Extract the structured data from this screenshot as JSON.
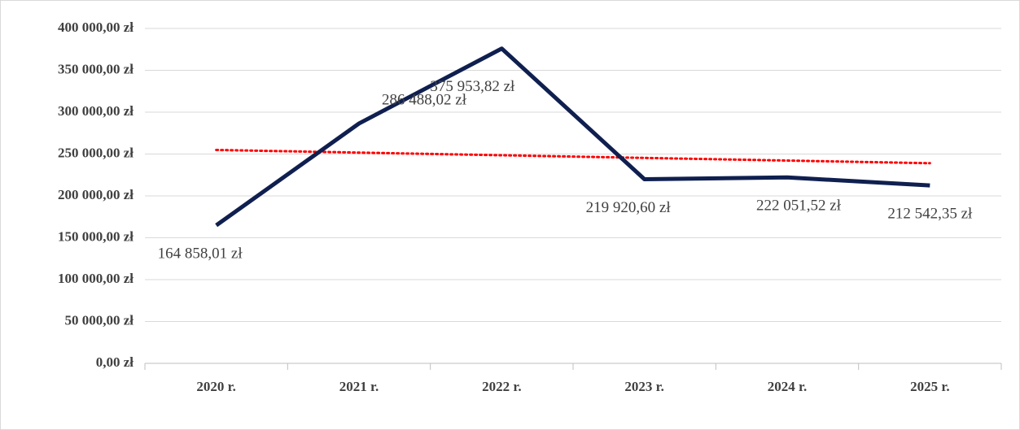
{
  "chart_data": {
    "type": "line",
    "categories": [
      "2020 r.",
      "2021 r.",
      "2022 r.",
      "2023 r.",
      "2024 r.",
      "2025 r."
    ],
    "values": [
      164858.01,
      286488.02,
      375953.82,
      219920.6,
      222051.52,
      212542.35
    ],
    "value_labels": [
      "164 858,01 zł",
      "286 488,02 zł",
      "375 953,82 zł",
      "219 920,60 zł",
      "222 051,52 zł",
      "212 542,35 zł"
    ],
    "color": "#0f1f4f",
    "trendline": {
      "color": "#ff0000",
      "values": [
        254892,
        251723,
        248554,
        245385,
        242215,
        239046
      ]
    },
    "ylim": [
      0,
      400000
    ],
    "yticks": [
      {
        "value": 0,
        "label": "0,00 zł"
      },
      {
        "value": 50000,
        "label": "50 000,00 zł"
      },
      {
        "value": 100000,
        "label": "100 000,00 zł"
      },
      {
        "value": 150000,
        "label": "150 000,00 zł"
      },
      {
        "value": 200000,
        "label": "200 000,00 zł"
      },
      {
        "value": 250000,
        "label": "250 000,00 zł"
      },
      {
        "value": 300000,
        "label": "300 000,00 zł"
      },
      {
        "value": 350000,
        "label": "350 000,00 zł"
      },
      {
        "value": 400000,
        "label": "400 000,00 zł"
      }
    ],
    "grid": true
  }
}
